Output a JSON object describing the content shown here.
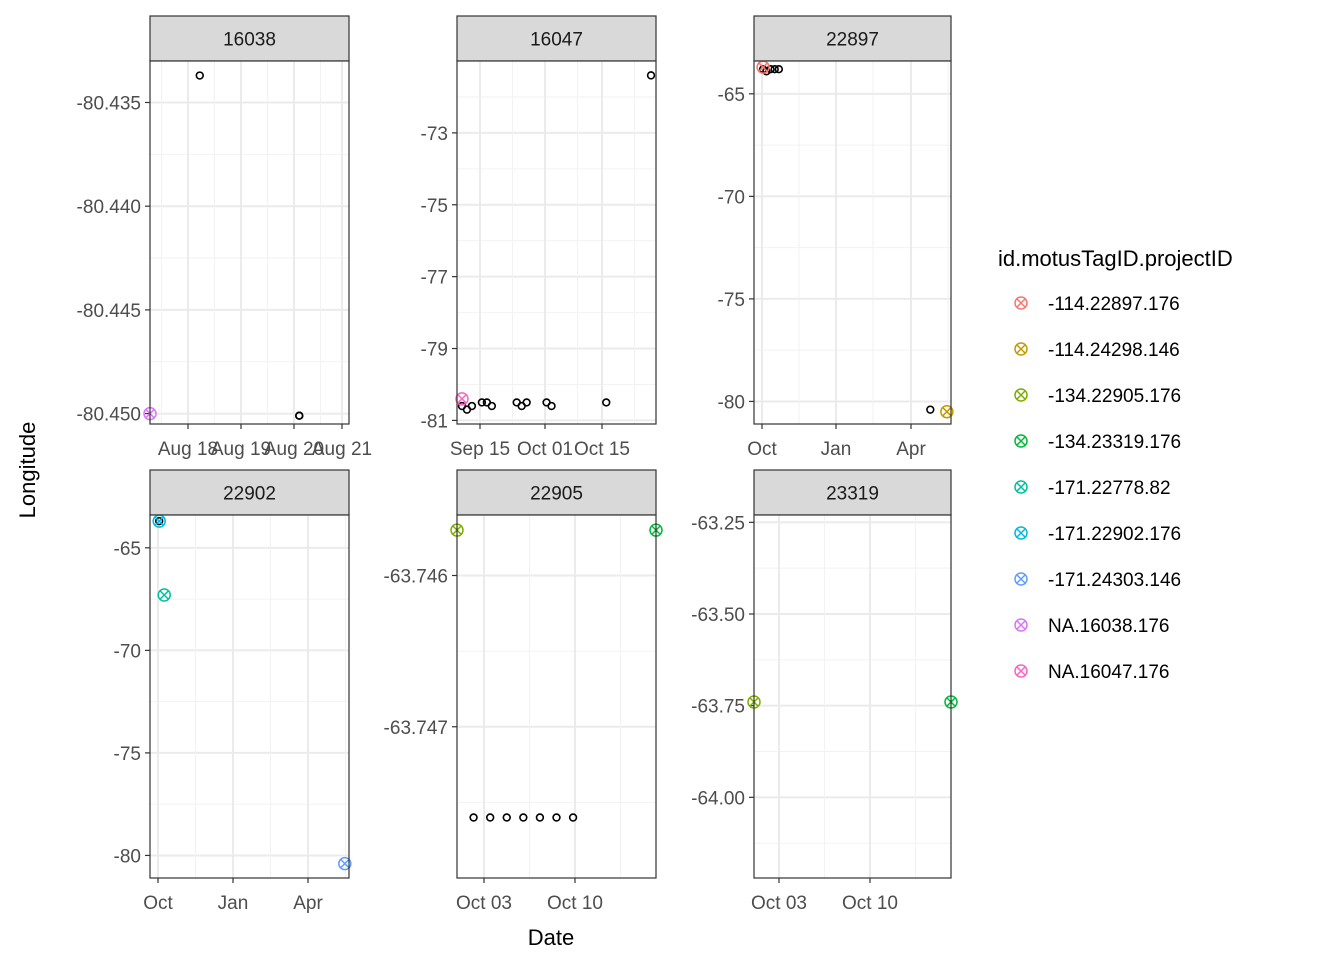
{
  "figure": {
    "xlabel": "Date",
    "ylabel": "Longitude",
    "legend_title": "id.motusTagID.projectID"
  },
  "legend": {
    "placement": "right",
    "items": [
      {
        "label": "-114.22897.176",
        "color": "#F8766D"
      },
      {
        "label": "-114.24298.146",
        "color": "#C49A00"
      },
      {
        "label": "-134.22905.176",
        "color": "#7CAE00"
      },
      {
        "label": "-134.23319.176",
        "color": "#00BA38"
      },
      {
        "label": "-171.22778.82",
        "color": "#00C19F"
      },
      {
        "label": "-171.22902.176",
        "color": "#00B9E3"
      },
      {
        "label": "-171.24303.146",
        "color": "#619CFF"
      },
      {
        "label": "NA.16038.176",
        "color": "#DB72FB"
      },
      {
        "label": "NA.16047.176",
        "color": "#FF61C3"
      }
    ]
  },
  "chart_data": [
    {
      "type": "scatter",
      "strip": "16038",
      "x_type": "date",
      "xlim": [
        "2023-08-17",
        "2023-08-21"
      ],
      "ylim": [
        -80.4505,
        -80.433
      ],
      "xticks": [
        {
          "label": "Aug 18"
        },
        {
          "label": "Aug 19"
        },
        {
          "label": "Aug 20"
        },
        {
          "label": "Aug 21"
        }
      ],
      "yticks": [
        {
          "value": -80.435,
          "label": "-80.435"
        },
        {
          "value": -80.44,
          "label": "-80.440"
        },
        {
          "value": -80.445,
          "label": "-80.445"
        },
        {
          "value": -80.45,
          "label": "-80.450"
        }
      ],
      "detections": [
        {
          "x": "2023-08-18",
          "y": -80.4337
        },
        {
          "x": "2023-08-20",
          "y": -80.4501
        },
        {
          "x": "2023-08-20",
          "y": -80.4501
        }
      ],
      "stations": [
        {
          "x": "2023-08-17",
          "y": -80.45,
          "color": "#DB72FB"
        }
      ]
    },
    {
      "type": "scatter",
      "strip": "16047",
      "x_type": "date",
      "xlim": [
        "2023-09-12",
        "2023-10-22"
      ],
      "ylim": [
        -81.1,
        -71.0
      ],
      "xticks": [
        {
          "label": "Sep 15"
        },
        {
          "label": "Oct 01"
        },
        {
          "label": "Oct 15"
        }
      ],
      "yticks": [
        {
          "value": -73,
          "label": "-73"
        },
        {
          "value": -75,
          "label": "-75"
        },
        {
          "value": -77,
          "label": "-77"
        },
        {
          "value": -79,
          "label": "-79"
        },
        {
          "value": -81,
          "label": "-81"
        }
      ],
      "detections": [
        {
          "x": "2023-09-13",
          "y": -80.6
        },
        {
          "x": "2023-09-14",
          "y": -80.7
        },
        {
          "x": "2023-09-15",
          "y": -80.6
        },
        {
          "x": "2023-09-17",
          "y": -80.5
        },
        {
          "x": "2023-09-18",
          "y": -80.5
        },
        {
          "x": "2023-09-19",
          "y": -80.6
        },
        {
          "x": "2023-09-24",
          "y": -80.5
        },
        {
          "x": "2023-09-25",
          "y": -80.6
        },
        {
          "x": "2023-09-26",
          "y": -80.5
        },
        {
          "x": "2023-09-30",
          "y": -80.5
        },
        {
          "x": "2023-10-01",
          "y": -80.6
        },
        {
          "x": "2023-10-12",
          "y": -80.5
        },
        {
          "x": "2023-10-21",
          "y": -71.4
        }
      ],
      "stations": [
        {
          "x": "2023-09-13",
          "y": -80.4,
          "color": "#FF61C3"
        }
      ]
    },
    {
      "type": "scatter",
      "strip": "22897",
      "x_type": "date",
      "xlim": [
        "2023-09-20",
        "2024-05-15"
      ],
      "ylim": [
        -81.1,
        -63.4
      ],
      "xticks": [
        {
          "label": "Oct"
        },
        {
          "label": "Jan"
        },
        {
          "label": "Apr"
        }
      ],
      "yticks": [
        {
          "value": -65,
          "label": "-65"
        },
        {
          "value": -70,
          "label": "-70"
        },
        {
          "value": -75,
          "label": "-75"
        },
        {
          "value": -80,
          "label": "-80"
        }
      ],
      "detections": [
        {
          "x": "2023-10-01",
          "y": -63.8
        },
        {
          "x": "2023-10-05",
          "y": -63.9
        },
        {
          "x": "2023-10-10",
          "y": -63.8
        },
        {
          "x": "2023-10-15",
          "y": -63.8
        },
        {
          "x": "2023-10-20",
          "y": -63.8
        },
        {
          "x": "2024-04-20",
          "y": -80.4
        }
      ],
      "stations": [
        {
          "x": "2023-10-01",
          "y": -63.7,
          "color": "#F8766D"
        },
        {
          "x": "2024-05-10",
          "y": -80.5,
          "color": "#C49A00"
        }
      ]
    },
    {
      "type": "scatter",
      "strip": "22902",
      "x_type": "date",
      "xlim": [
        "2023-09-20",
        "2024-05-15"
      ],
      "ylim": [
        -81.1,
        -63.4
      ],
      "xticks": [
        {
          "label": "Oct"
        },
        {
          "label": "Jan"
        },
        {
          "label": "Apr"
        }
      ],
      "yticks": [
        {
          "value": -65,
          "label": "-65"
        },
        {
          "value": -70,
          "label": "-70"
        },
        {
          "value": -75,
          "label": "-75"
        },
        {
          "value": -80,
          "label": "-80"
        }
      ],
      "detections": [
        {
          "x": "2023-10-01",
          "y": -63.7
        }
      ],
      "stations": [
        {
          "x": "2023-10-01",
          "y": -63.7,
          "color": "#00B9E3"
        },
        {
          "x": "2023-10-07",
          "y": -67.3,
          "color": "#00C19F"
        },
        {
          "x": "2024-05-10",
          "y": -80.4,
          "color": "#619CFF"
        }
      ]
    },
    {
      "type": "scatter",
      "strip": "22905",
      "x_type": "date",
      "xlim": [
        "2023-10-02",
        "2023-10-14"
      ],
      "ylim": [
        -63.748,
        -63.7456
      ],
      "xticks": [
        {
          "label": "Oct 03"
        },
        {
          "label": "Oct 10"
        }
      ],
      "yticks": [
        {
          "value": -63.746,
          "label": "-63.746"
        },
        {
          "value": -63.747,
          "label": "-63.747"
        }
      ],
      "detections": [
        {
          "x": "2023-10-03",
          "y": -63.7476
        },
        {
          "x": "2023-10-04",
          "y": -63.7476
        },
        {
          "x": "2023-10-05",
          "y": -63.7476
        },
        {
          "x": "2023-10-06",
          "y": -63.7476
        },
        {
          "x": "2023-10-07",
          "y": -63.7476
        },
        {
          "x": "2023-10-08",
          "y": -63.7476
        },
        {
          "x": "2023-10-09",
          "y": -63.7476
        }
      ],
      "stations": [
        {
          "x": "2023-10-02",
          "y": -63.7457,
          "color": "#7CAE00"
        },
        {
          "x": "2023-10-14",
          "y": -63.7457,
          "color": "#00BA38"
        }
      ]
    },
    {
      "type": "scatter",
      "strip": "23319",
      "x_type": "date",
      "xlim": [
        "2023-10-02",
        "2023-10-14"
      ],
      "ylim": [
        -64.22,
        -63.23
      ],
      "xticks": [
        {
          "label": "Oct 03"
        },
        {
          "label": "Oct 10"
        }
      ],
      "yticks": [
        {
          "value": -63.25,
          "label": "-63.25"
        },
        {
          "value": -63.5,
          "label": "-63.50"
        },
        {
          "value": -63.75,
          "label": "-63.75"
        },
        {
          "value": -64.0,
          "label": "-64.00"
        }
      ],
      "detections": [],
      "stations": [
        {
          "x": "2023-10-02",
          "y": -63.74,
          "color": "#7CAE00"
        },
        {
          "x": "2023-10-14",
          "y": -63.74,
          "color": "#00BA38"
        }
      ]
    }
  ]
}
